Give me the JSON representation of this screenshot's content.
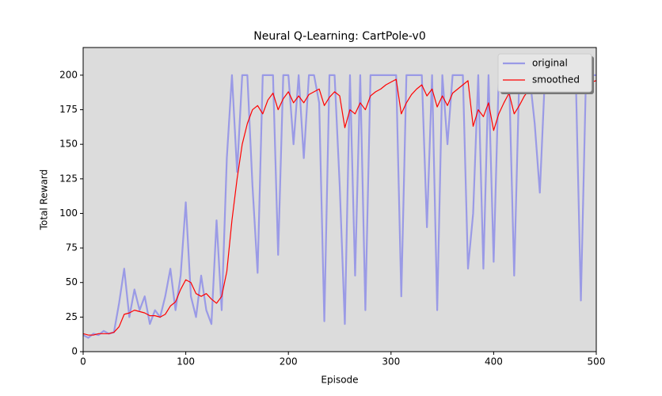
{
  "chart_data": {
    "type": "line",
    "title": "Neural Q-Learning: CartPole-v0",
    "x_label": "Episode",
    "y_label": "Total Reward",
    "x": [
      0,
      5,
      10,
      15,
      20,
      25,
      30,
      35,
      40,
      45,
      50,
      55,
      60,
      65,
      70,
      75,
      80,
      85,
      90,
      95,
      100,
      105,
      110,
      115,
      120,
      125,
      130,
      135,
      140,
      145,
      150,
      155,
      160,
      165,
      170,
      175,
      180,
      185,
      190,
      195,
      200,
      205,
      210,
      215,
      220,
      225,
      230,
      235,
      240,
      245,
      250,
      255,
      260,
      265,
      270,
      275,
      280,
      285,
      290,
      295,
      300,
      305,
      310,
      315,
      320,
      325,
      330,
      335,
      340,
      345,
      350,
      355,
      360,
      365,
      370,
      375,
      380,
      385,
      390,
      395,
      400,
      405,
      410,
      415,
      420,
      425,
      430,
      435,
      440,
      445,
      450,
      455,
      460,
      465,
      470,
      475,
      480,
      485,
      490,
      495,
      500
    ],
    "series": [
      {
        "name": "original",
        "color": "#9a9ae6",
        "width": 2.2,
        "values": [
          12,
          10,
          13,
          12,
          15,
          13,
          14,
          35,
          60,
          25,
          45,
          30,
          40,
          20,
          30,
          25,
          40,
          60,
          30,
          55,
          108,
          40,
          25,
          55,
          30,
          20,
          95,
          30,
          140,
          200,
          130,
          200,
          200,
          120,
          57,
          200,
          200,
          200,
          70,
          200,
          200,
          150,
          200,
          140,
          200,
          200,
          180,
          22,
          200,
          200,
          120,
          20,
          200,
          55,
          200,
          30,
          200,
          200,
          200,
          200,
          200,
          200,
          40,
          200,
          200,
          200,
          200,
          90,
          200,
          30,
          200,
          150,
          200,
          200,
          200,
          60,
          100,
          200,
          60,
          200,
          65,
          200,
          200,
          200,
          55,
          200,
          200,
          200,
          165,
          115,
          200,
          200,
          200,
          200,
          200,
          200,
          200,
          37,
          200,
          200,
          200
        ]
      },
      {
        "name": "smoothed",
        "color": "#ff0000",
        "width": 1.2,
        "values": [
          13,
          12,
          12,
          13,
          13,
          13,
          14,
          18,
          27,
          28,
          30,
          29,
          28,
          26,
          26,
          25,
          27,
          33,
          36,
          45,
          52,
          50,
          42,
          40,
          42,
          38,
          35,
          40,
          58,
          95,
          125,
          150,
          165,
          175,
          178,
          172,
          182,
          187,
          175,
          183,
          188,
          180,
          185,
          180,
          186,
          188,
          190,
          178,
          184,
          188,
          185,
          162,
          175,
          172,
          180,
          175,
          185,
          188,
          190,
          193,
          195,
          197,
          172,
          180,
          186,
          190,
          193,
          185,
          190,
          177,
          185,
          178,
          187,
          190,
          193,
          196,
          163,
          175,
          170,
          180,
          160,
          172,
          180,
          187,
          172,
          178,
          185,
          190,
          192,
          188,
          192,
          195,
          197,
          198,
          198,
          198,
          199,
          188,
          193,
          195,
          196
        ]
      }
    ],
    "xlim": [
      0,
      500
    ],
    "xticks": [
      0,
      100,
      200,
      300,
      400,
      500
    ],
    "ylim": [
      0,
      220
    ],
    "yticks": [
      0,
      25,
      50,
      75,
      100,
      125,
      150,
      175,
      200
    ],
    "legend": "upper right",
    "background": "#dcdcdc"
  }
}
